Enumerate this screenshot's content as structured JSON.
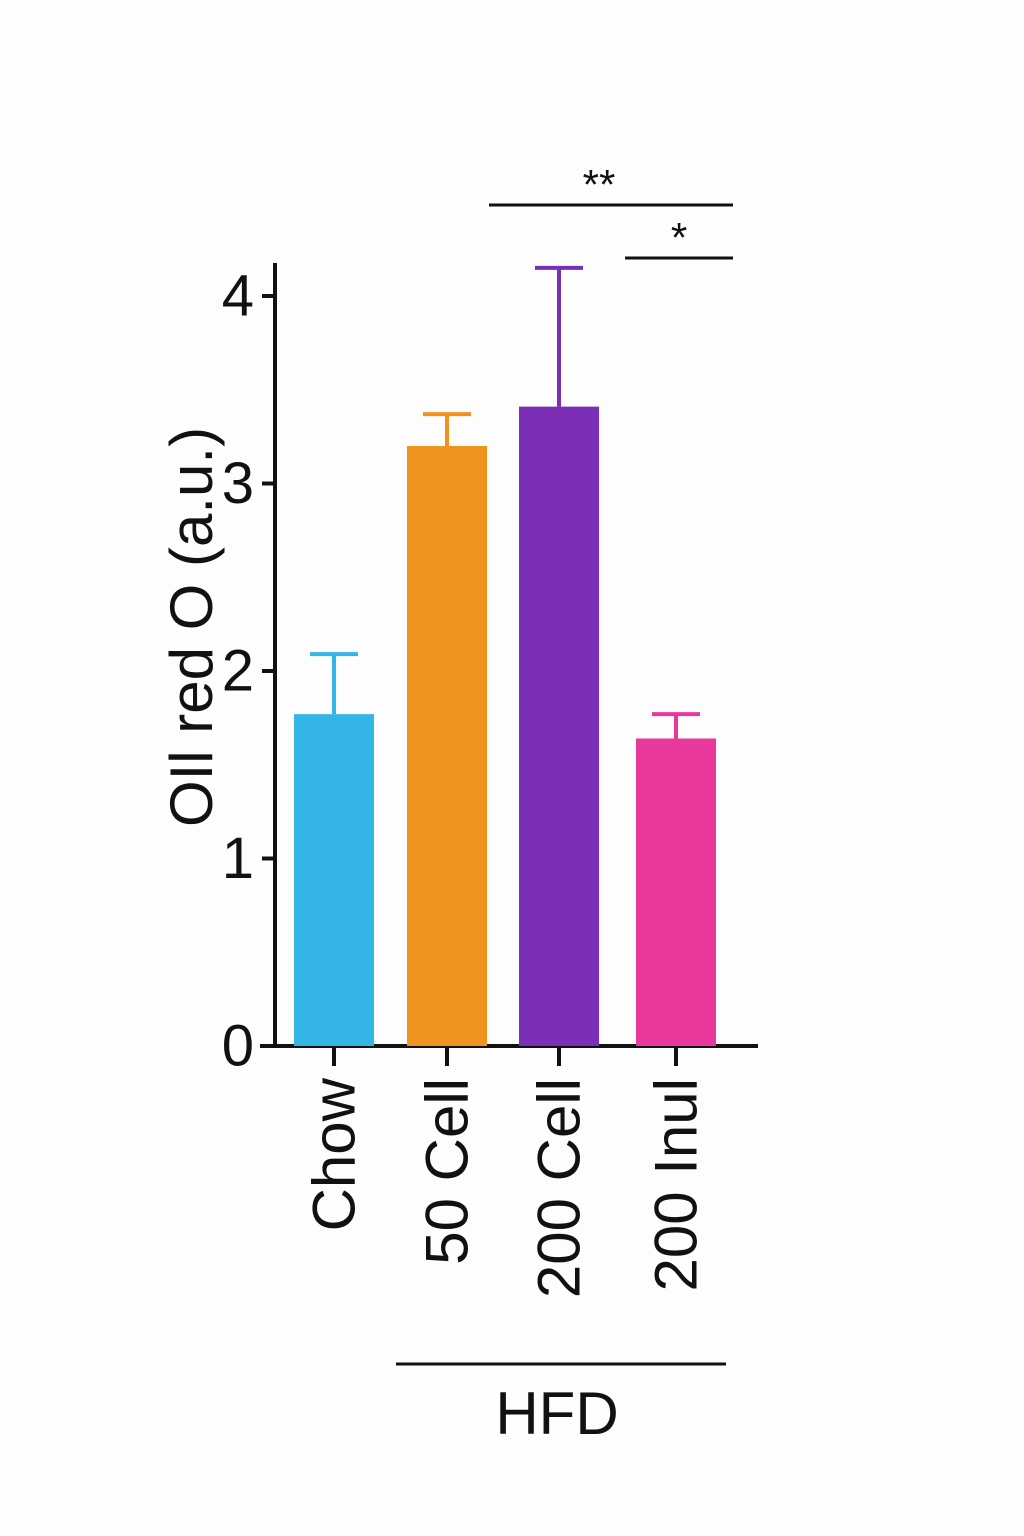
{
  "chart_data": {
    "type": "bar",
    "ylabel": "OIl red O (a.u.)",
    "ylim": [
      0,
      4.2
    ],
    "yticks": [
      "0",
      "1",
      "2",
      "3",
      "4"
    ],
    "categories": [
      "Chow",
      "50 Cell",
      "200 Cell",
      "200 Inul"
    ],
    "values": [
      1.77,
      3.2,
      3.41,
      1.64
    ],
    "errors": [
      0.32,
      0.17,
      0.74,
      0.13
    ],
    "colors": [
      "#33b5e5",
      "#f0921e",
      "#7b2fb7",
      "#e8389c"
    ],
    "group_label": "HFD",
    "group_members": [
      "50 Cell",
      "200 Cell",
      "200 Inul"
    ],
    "significance": [
      {
        "from": "200 Cell",
        "to": "200 Inul",
        "label": "*"
      },
      {
        "from": "50 Cell",
        "to": "200 Inul",
        "label": "**"
      }
    ],
    "grid": false,
    "legend": "none"
  }
}
